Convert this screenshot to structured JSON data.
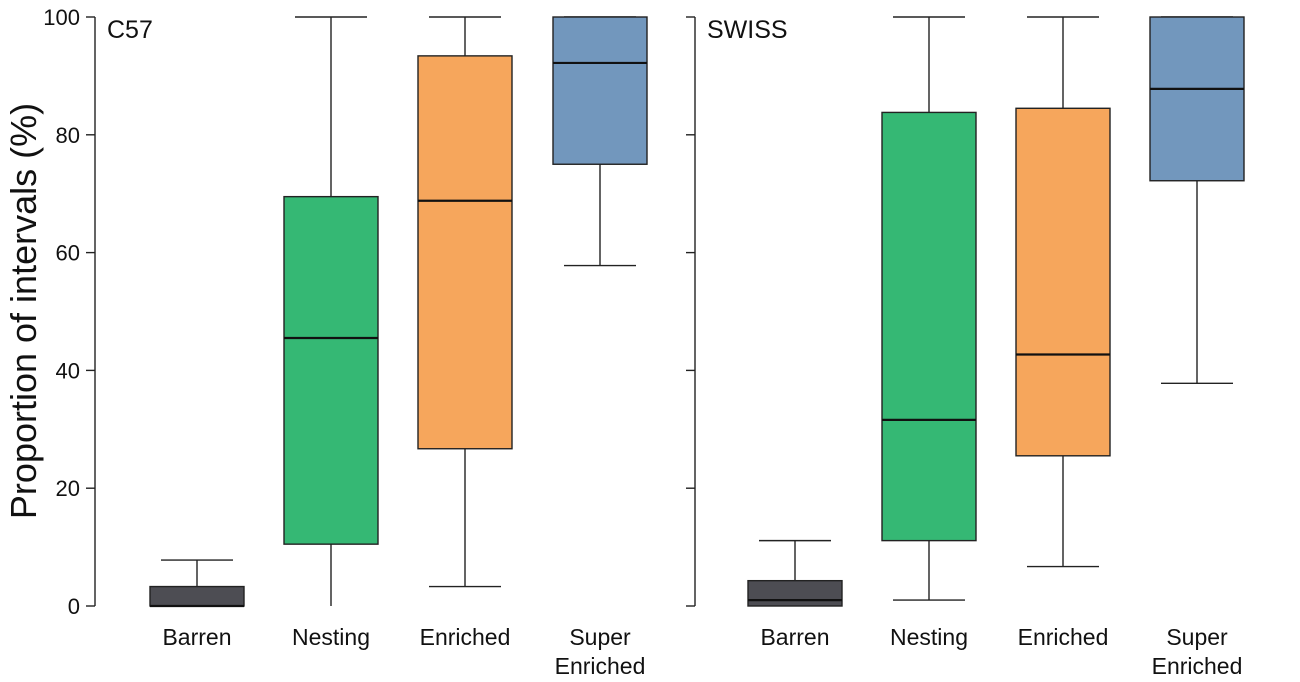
{
  "chart_data": {
    "type": "boxplot",
    "ylabel": "Proportion of intervals (%)",
    "ylim": [
      0,
      100
    ],
    "yticks": [
      0,
      20,
      40,
      60,
      80,
      100
    ],
    "categories": [
      {
        "label": [
          "Barren"
        ],
        "color": "#4d4d53"
      },
      {
        "label": [
          "Nesting"
        ],
        "color": "#35b874"
      },
      {
        "label": [
          "Enriched"
        ],
        "color": "#f6a65c"
      },
      {
        "label": [
          "Super",
          "Enriched"
        ],
        "color": "#7297bd"
      }
    ],
    "panels": [
      {
        "name": "C57",
        "boxes": [
          {
            "min": 0,
            "q1": 0,
            "median": 0,
            "q3": 3.3,
            "max": 7.8
          },
          {
            "min": 0,
            "q1": 10.5,
            "median": 45.5,
            "q3": 69.5,
            "max": 100
          },
          {
            "min": 3.3,
            "q1": 26.7,
            "median": 68.8,
            "q3": 93.4,
            "max": 100
          },
          {
            "min": 57.8,
            "q1": 75.0,
            "median": 92.2,
            "q3": 100,
            "max": 100
          }
        ]
      },
      {
        "name": "SWISS",
        "boxes": [
          {
            "min": 0,
            "q1": 0,
            "median": 1.0,
            "q3": 4.3,
            "max": 11.1
          },
          {
            "min": 1.0,
            "q1": 11.1,
            "median": 31.6,
            "q3": 83.8,
            "max": 100
          },
          {
            "min": 6.7,
            "q1": 25.5,
            "median": 42.7,
            "q3": 84.5,
            "max": 100
          },
          {
            "min": 37.8,
            "q1": 72.2,
            "median": 87.8,
            "q3": 100,
            "max": 100
          }
        ]
      }
    ]
  }
}
